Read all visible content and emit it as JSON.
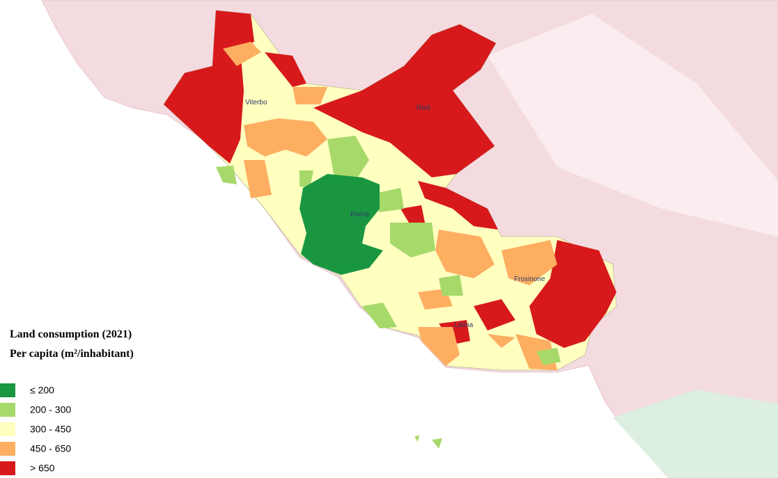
{
  "legend": {
    "title": "Land consumption (2021)",
    "subtitle": "Per capita  (m²/inhabitant)",
    "items": [
      {
        "label": "≤ 200",
        "color": "#1a9641"
      },
      {
        "label": "200 - 300",
        "color": "#a6d96a"
      },
      {
        "label": "300 - 450",
        "color": "#ffffc0"
      },
      {
        "label": "450 - 650",
        "color": "#fdae61"
      },
      {
        "label": "> 650",
        "color": "#d7191c"
      }
    ]
  },
  "places": [
    {
      "label": "Viterbo"
    },
    {
      "label": "Rieti"
    },
    {
      "label": "Roma"
    },
    {
      "label": "Frosinone"
    },
    {
      "label": "Latina"
    }
  ]
}
